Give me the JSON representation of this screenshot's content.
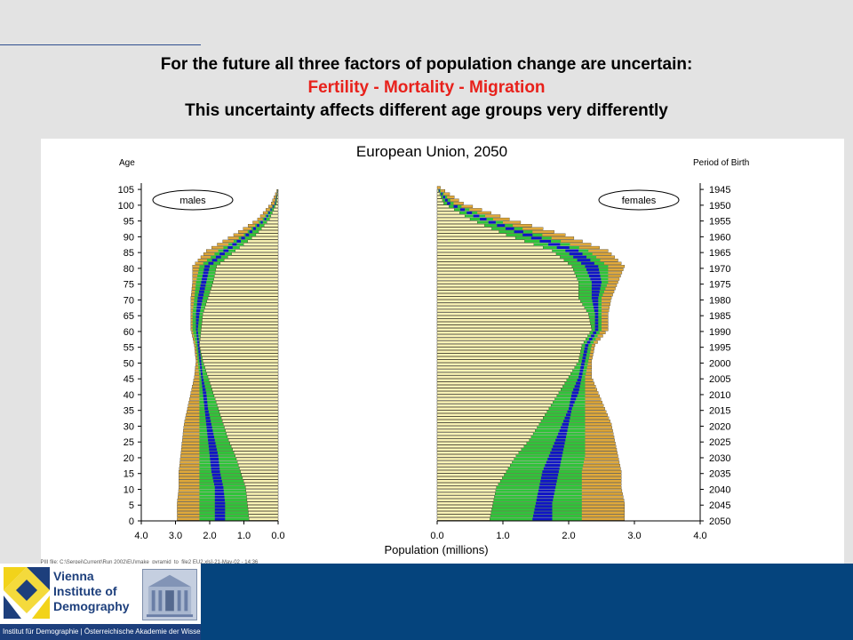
{
  "slide": {
    "title_line1": "For the future all three factors of population change are uncertain:",
    "title_line2": "Fertility - Mortality - Migration",
    "title_line3": "This uncertainty affects different age groups very differently"
  },
  "chart_data": {
    "type": "bar",
    "subtype": "population-pyramid-fan",
    "title": "European Union, 2050",
    "ylabel_left": "Age",
    "ylabel_right": "Period of Birth",
    "xlabel": "Population (millions)",
    "male_label": "males",
    "female_label": "females",
    "age_ticks": [
      "105",
      "100",
      "95",
      "90",
      "85",
      "80",
      "75",
      "70",
      "65",
      "60",
      "55",
      "50",
      "45",
      "40",
      "35",
      "30",
      "25",
      "20",
      "15",
      "10",
      "5",
      "0"
    ],
    "birth_ticks": [
      "1945",
      "1950",
      "1955",
      "1960",
      "1965",
      "1970",
      "1975",
      "1980",
      "1985",
      "1990",
      "1995",
      "2000",
      "2005",
      "2010",
      "2015",
      "2020",
      "2025",
      "2030",
      "2035",
      "2040",
      "2045",
      "2050"
    ],
    "x_ticks_male": [
      "4.0",
      "3.0",
      "2.0",
      "1.0",
      "0.0"
    ],
    "x_ticks_female": [
      "0.0",
      "1.0",
      "2.0",
      "3.0",
      "4.0"
    ],
    "xlim": [
      0,
      4
    ],
    "ylim": [
      0,
      107
    ],
    "ages": [
      0,
      5,
      10,
      15,
      20,
      25,
      30,
      35,
      40,
      45,
      50,
      55,
      60,
      65,
      70,
      75,
      80,
      85,
      90,
      95,
      100,
      105
    ],
    "male": {
      "outer_max": [
        2.95,
        2.95,
        2.9,
        2.9,
        2.85,
        2.8,
        2.75,
        2.65,
        2.55,
        2.45,
        2.4,
        2.45,
        2.55,
        2.55,
        2.55,
        2.5,
        2.5,
        2.1,
        1.3,
        0.6,
        0.2,
        0.0
      ],
      "inner_max": [
        2.3,
        2.3,
        2.3,
        2.3,
        2.3,
        2.3,
        2.3,
        2.3,
        2.3,
        2.3,
        2.35,
        2.4,
        2.5,
        2.5,
        2.45,
        2.4,
        2.3,
        1.75,
        1.0,
        0.45,
        0.1,
        0.0
      ],
      "median": [
        1.85,
        1.85,
        1.85,
        1.95,
        2.0,
        2.05,
        2.1,
        2.15,
        2.2,
        2.25,
        2.3,
        2.35,
        2.4,
        2.4,
        2.35,
        2.25,
        2.15,
        1.6,
        0.95,
        0.4,
        0.1,
        0.0
      ],
      "inner_min": [
        1.55,
        1.55,
        1.6,
        1.7,
        1.75,
        1.85,
        1.95,
        2.05,
        2.1,
        2.2,
        2.25,
        2.3,
        2.35,
        2.3,
        2.2,
        2.1,
        2.0,
        1.45,
        0.85,
        0.35,
        0.08,
        0.0
      ],
      "outer_min": [
        0.85,
        0.9,
        0.95,
        1.1,
        1.25,
        1.45,
        1.6,
        1.75,
        1.9,
        2.05,
        2.2,
        2.3,
        2.25,
        2.2,
        2.05,
        1.9,
        1.8,
        1.25,
        0.65,
        0.25,
        0.05,
        0.0
      ]
    },
    "female": {
      "outer_max": [
        2.85,
        2.85,
        2.8,
        2.8,
        2.75,
        2.7,
        2.65,
        2.55,
        2.45,
        2.35,
        2.35,
        2.4,
        2.6,
        2.6,
        2.65,
        2.75,
        2.85,
        2.6,
        1.95,
        1.1,
        0.4,
        0.05
      ],
      "inner_max": [
        2.2,
        2.2,
        2.2,
        2.2,
        2.25,
        2.25,
        2.25,
        2.25,
        2.25,
        2.25,
        2.3,
        2.35,
        2.5,
        2.5,
        2.5,
        2.6,
        2.6,
        2.3,
        1.6,
        0.85,
        0.25,
        0.0
      ],
      "median": [
        1.75,
        1.75,
        1.8,
        1.85,
        1.9,
        1.95,
        2.0,
        2.05,
        2.15,
        2.2,
        2.25,
        2.3,
        2.45,
        2.45,
        2.45,
        2.5,
        2.45,
        2.15,
        1.45,
        0.75,
        0.2,
        0.0
      ],
      "inner_min": [
        1.45,
        1.5,
        1.55,
        1.6,
        1.7,
        1.8,
        1.9,
        2.0,
        2.05,
        2.15,
        2.2,
        2.25,
        2.4,
        2.4,
        2.35,
        2.35,
        2.25,
        1.95,
        1.3,
        0.65,
        0.15,
        0.0
      ],
      "outer_min": [
        0.8,
        0.85,
        0.9,
        1.05,
        1.2,
        1.4,
        1.55,
        1.7,
        1.85,
        2.0,
        2.15,
        2.2,
        2.35,
        2.3,
        2.15,
        2.15,
        2.05,
        1.75,
        1.05,
        0.5,
        0.1,
        0.0
      ]
    },
    "colors": {
      "outer": "#e0a93a",
      "inner": "#2fc43a",
      "median": "#1014c8",
      "core": "#fbf4b6",
      "outline": "#000000"
    },
    "footnote": "Sergei\\DELL PIII file: C:\\Sergei\\Current\\Run 2002\\EU\\make_pyramid_to_file2 EU2.xls]-21-May-02 - 14:36"
  },
  "footer": {
    "logo_line1": "Vienna",
    "logo_line2": "Institute of",
    "logo_line3": "Demography",
    "caption": "Institut für Demographie | Österreichische Akademie der Wissenschaften"
  }
}
